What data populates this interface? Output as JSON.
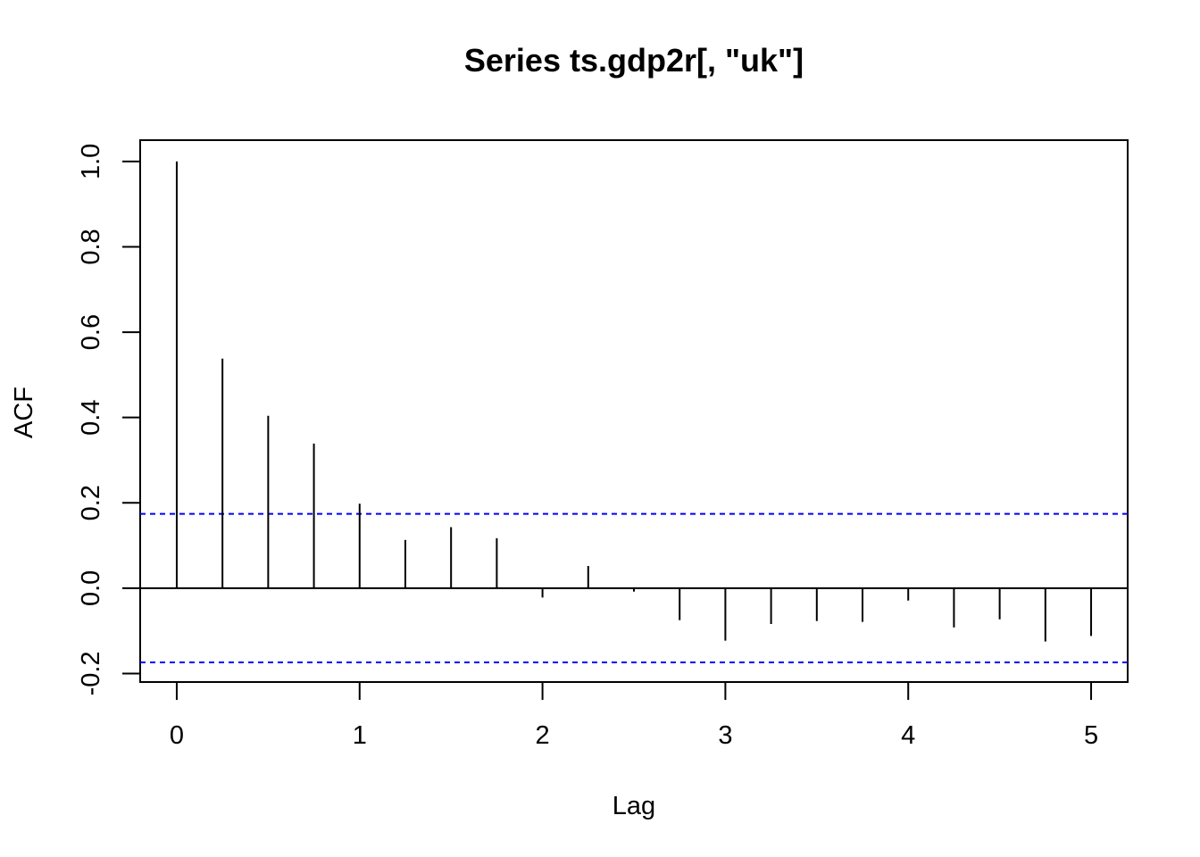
{
  "chart_data": {
    "type": "bar",
    "title": "Series  ts.gdp2r[, \"uk\"]",
    "xlabel": "Lag",
    "ylabel": "ACF",
    "xlim": [
      -0.2,
      5.2
    ],
    "ylim": [
      -0.22,
      1.05
    ],
    "x_ticks": [
      0,
      1,
      2,
      3,
      4,
      5
    ],
    "y_ticks": [
      -0.2,
      0.0,
      0.2,
      0.4,
      0.6,
      0.8,
      1.0
    ],
    "x_tick_labels": [
      "0",
      "1",
      "2",
      "3",
      "4",
      "5"
    ],
    "y_tick_labels": [
      "-0.2",
      "0.0",
      "0.2",
      "0.4",
      "0.6",
      "0.8",
      "1.0"
    ],
    "lags": [
      0,
      0.25,
      0.5,
      0.75,
      1.0,
      1.25,
      1.5,
      1.75,
      2.0,
      2.25,
      2.5,
      2.75,
      3.0,
      3.25,
      3.5,
      3.75,
      4.0,
      4.25,
      4.5,
      4.75,
      5.0
    ],
    "acf": [
      1.0,
      0.538,
      0.404,
      0.339,
      0.198,
      0.113,
      0.143,
      0.117,
      -0.022,
      0.052,
      -0.008,
      -0.075,
      -0.123,
      -0.084,
      -0.077,
      -0.079,
      -0.029,
      -0.092,
      -0.073,
      -0.125,
      -0.112
    ],
    "confidence_bound": 0.174,
    "confidence_color": "#0000ff",
    "line_color": "#000000",
    "grid": false
  }
}
